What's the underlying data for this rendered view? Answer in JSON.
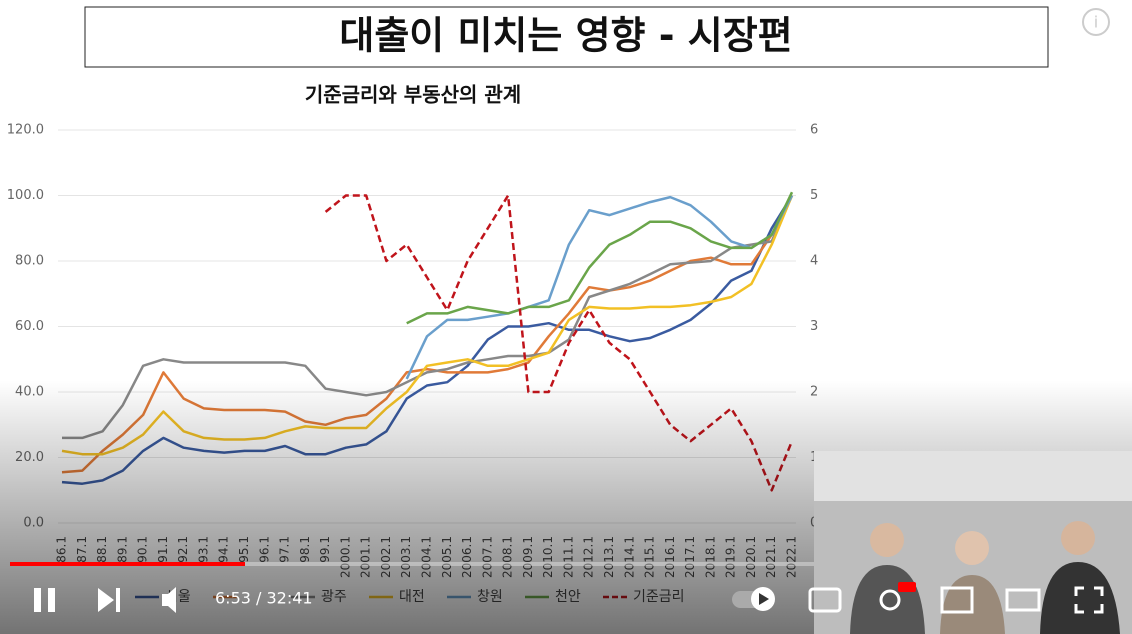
{
  "header": {
    "title": "대출이 미치는 영향 - 시장편"
  },
  "player": {
    "time": "6:53 / 32:41"
  },
  "chart_data": {
    "type": "line",
    "title": "기준금리와 부동산의 관계",
    "categories": [
      "86.1",
      "87.1",
      "88.1",
      "89.1",
      "90.1",
      "91.1",
      "92.1",
      "93.1",
      "94.1",
      "95.1",
      "96.1",
      "97.1",
      "98.1",
      "99.1",
      "2000.1",
      "2001.1",
      "2002.1",
      "2003.1",
      "2004.1",
      "2005.1",
      "2006.1",
      "2007.1",
      "2008.1",
      "2009.1",
      "2010.1",
      "2011.1",
      "2012.1",
      "2013.1",
      "2014.1",
      "2015.1",
      "2016.1",
      "2017.1",
      "2018.1",
      "2019.1",
      "2020.1",
      "2021.1",
      "2022.1"
    ],
    "ylim": [
      0,
      120
    ],
    "yticks": [
      {
        "value": 0,
        "label": "0.0"
      },
      {
        "value": 20,
        "label": "20.0"
      },
      {
        "value": 40,
        "label": "40.0"
      },
      {
        "value": 60,
        "label": "60.0"
      },
      {
        "value": 80,
        "label": "80.0"
      },
      {
        "value": 100,
        "label": "100.0"
      },
      {
        "value": 120,
        "label": "120.0"
      }
    ],
    "y2lim": [
      0,
      6
    ],
    "y2ticks": [
      0,
      1,
      2,
      3,
      4,
      5,
      6
    ],
    "grid": true,
    "series": [
      {
        "name": "서울",
        "color": "#3a5ba0",
        "values": [
          12.5,
          12,
          13,
          16,
          22,
          26,
          23,
          22,
          21.5,
          22,
          22,
          23.5,
          21,
          21,
          23,
          24,
          28,
          38,
          42,
          43,
          48,
          56,
          60,
          60,
          61,
          59,
          59,
          57,
          55.5,
          56.5,
          59,
          62,
          67,
          74,
          77,
          90,
          100
        ]
      },
      {
        "color": "#e07a38",
        "values": [
          15.5,
          16,
          22,
          27,
          33,
          46,
          38,
          35,
          34.5,
          34.5,
          34.5,
          34,
          31,
          30,
          32,
          33,
          38,
          46,
          47,
          46,
          46,
          46,
          47,
          49,
          57,
          64,
          72,
          71,
          72,
          74,
          77,
          80,
          81,
          79,
          79,
          88,
          100
        ]
      },
      {
        "name": "광주",
        "color": "#888888",
        "values": [
          26,
          26,
          28,
          36,
          48,
          50,
          49,
          49,
          49,
          49,
          49,
          49,
          48,
          41,
          40,
          39,
          40,
          43,
          46,
          47,
          49,
          50,
          51,
          51,
          52,
          56,
          69,
          71,
          73,
          76,
          79,
          79.5,
          80,
          84,
          85,
          86,
          100
        ]
      },
      {
        "name": "대전",
        "color": "#f2c025",
        "values": [
          22,
          21,
          21,
          23,
          27,
          34,
          28,
          26,
          25.5,
          25.5,
          26,
          28,
          29.5,
          29,
          29,
          29,
          35,
          40,
          48,
          49,
          50,
          48,
          48,
          50,
          52,
          62,
          66,
          65.5,
          65.5,
          66,
          66,
          66.5,
          67.5,
          69,
          73,
          85,
          100
        ]
      },
      {
        "name": "창원",
        "color": "#6a9fcc",
        "values": [
          null,
          null,
          null,
          null,
          null,
          null,
          null,
          null,
          null,
          null,
          null,
          null,
          null,
          null,
          null,
          null,
          null,
          44,
          57,
          62,
          62,
          63,
          64,
          66,
          68,
          85,
          95.5,
          94,
          96,
          98,
          99.5,
          97,
          92,
          86,
          84,
          88,
          100
        ]
      },
      {
        "name": "천안",
        "color": "#6aa54a",
        "values": [
          null,
          null,
          null,
          null,
          null,
          null,
          null,
          null,
          null,
          null,
          null,
          null,
          null,
          null,
          null,
          null,
          null,
          61,
          64,
          64,
          66,
          65,
          64,
          66,
          66,
          68,
          78,
          85,
          88,
          92,
          92,
          90,
          86,
          84,
          84,
          88,
          101
        ]
      },
      {
        "name": "기준금리",
        "color": "#c0141b",
        "axis": "y2",
        "dashed": true,
        "values": [
          null,
          null,
          null,
          null,
          null,
          null,
          null,
          null,
          null,
          null,
          null,
          null,
          null,
          4.75,
          5.0,
          5.0,
          4.0,
          4.25,
          3.75,
          3.25,
          4.0,
          4.5,
          5.0,
          2.0,
          2.0,
          2.75,
          3.25,
          2.75,
          2.5,
          2.0,
          1.5,
          1.25,
          1.5,
          1.75,
          1.25,
          0.5,
          1.25
        ]
      }
    ]
  }
}
